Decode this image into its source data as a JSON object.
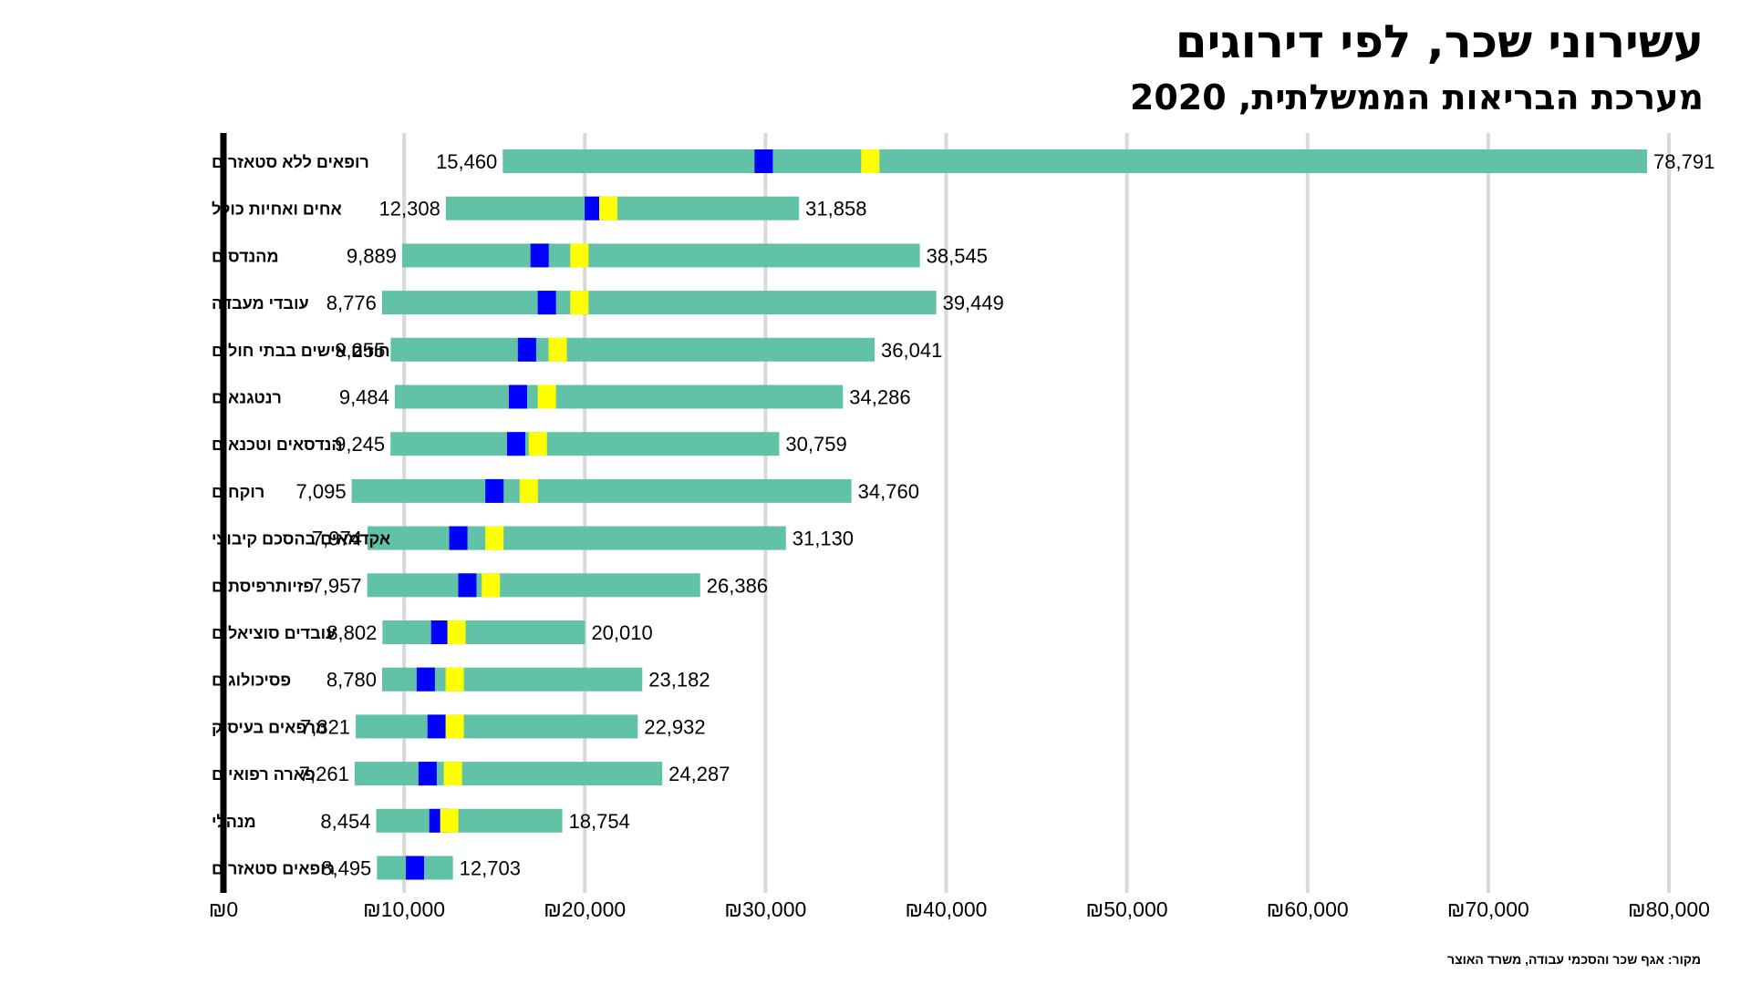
{
  "header": {
    "title": "עשירוני שכר, לפי דירוגים",
    "subtitle": "מערכת הבריאות הממשלתית, 2020"
  },
  "source": "מקור: אגף שכר והסכמי עבודה, משרד האוצר",
  "colors": {
    "range_bar": "#62c2a8",
    "marker_blue": "#0000ff",
    "marker_yellow": "#ffff00",
    "grid": "#d9d9d9",
    "axis": "#000000"
  },
  "chart_data": {
    "type": "bar",
    "orientation": "horizontal",
    "xlim": [
      0,
      80000
    ],
    "xticks": [
      0,
      10000,
      20000,
      30000,
      40000,
      50000,
      60000,
      70000,
      80000
    ],
    "xtick_labels": [
      "₪0",
      "₪10,000",
      "₪20,000",
      "₪30,000",
      "₪40,000",
      "₪50,000",
      "₪60,000",
      "₪70,000",
      "₪80,000"
    ],
    "grid": "vertical",
    "rows": [
      {
        "category": "רופאים ללא סטאזרים",
        "min": 15460,
        "max": 78791,
        "min_label": "15,460",
        "max_label": "78,791",
        "blue": 29900,
        "yellow": 35800
      },
      {
        "category": "אחים ואחיות כולל",
        "min": 12308,
        "max": 31858,
        "min_label": "12,308",
        "max_label": "31,858",
        "blue": 20500,
        "yellow": 21300
      },
      {
        "category": "מהנדסים",
        "min": 9889,
        "max": 38545,
        "min_label": "9,889",
        "max_label": "38,545",
        "blue": 17500,
        "yellow": 19700
      },
      {
        "category": "עובדי מעבדה",
        "min": 8776,
        "max": 39449,
        "min_label": "8,776",
        "max_label": "39,449",
        "blue": 17900,
        "yellow": 19700
      },
      {
        "category": "חוזים אישים בבתי חולים",
        "min": 9255,
        "max": 36041,
        "min_label": "9,255",
        "max_label": "36,041",
        "blue": 16800,
        "yellow": 18500
      },
      {
        "category": "רנטגנאים",
        "min": 9484,
        "max": 34286,
        "min_label": "9,484",
        "max_label": "34,286",
        "blue": 16300,
        "yellow": 17900
      },
      {
        "category": "הנדסאים וטכנאים",
        "min": 9245,
        "max": 30759,
        "min_label": "9,245",
        "max_label": "30,759",
        "blue": 16200,
        "yellow": 17400
      },
      {
        "category": "רוקחים",
        "min": 7095,
        "max": 34760,
        "min_label": "7,095",
        "max_label": "34,760",
        "blue": 15000,
        "yellow": 16900
      },
      {
        "category": "אקדמאים בהסכם קיבוצי",
        "min": 7974,
        "max": 31130,
        "min_label": "7,974",
        "max_label": "31,130",
        "blue": 13000,
        "yellow": 15000
      },
      {
        "category": "פזיותרפיסתים",
        "min": 7957,
        "max": 26386,
        "min_label": "7,957",
        "max_label": "26,386",
        "blue": 13500,
        "yellow": 14800
      },
      {
        "category": "עובדים סוציאלים",
        "min": 8802,
        "max": 20010,
        "min_label": "8,802",
        "max_label": "20,010",
        "blue": 12000,
        "yellow": 12900
      },
      {
        "category": "פסיכולוגים",
        "min": 8780,
        "max": 23182,
        "min_label": "8,780",
        "max_label": "23,182",
        "blue": 11200,
        "yellow": 12800
      },
      {
        "category": "מרפאים בעיסוק",
        "min": 7321,
        "max": 22932,
        "min_label": "7,321",
        "max_label": "22,932",
        "blue": 11800,
        "yellow": 12800
      },
      {
        "category": "פארה רפואיים",
        "min": 7261,
        "max": 24287,
        "min_label": "7,261",
        "max_label": "24,287",
        "blue": 11300,
        "yellow": 12700
      },
      {
        "category": "מנהלי",
        "min": 8454,
        "max": 18754,
        "min_label": "8,454",
        "max_label": "18,754",
        "blue": 11900,
        "yellow": 12500
      },
      {
        "category": "רופאים סטאזרים",
        "min": 8495,
        "max": 12703,
        "min_label": "8,495",
        "max_label": "12,703",
        "blue": 10600,
        "yellow": null
      }
    ]
  }
}
